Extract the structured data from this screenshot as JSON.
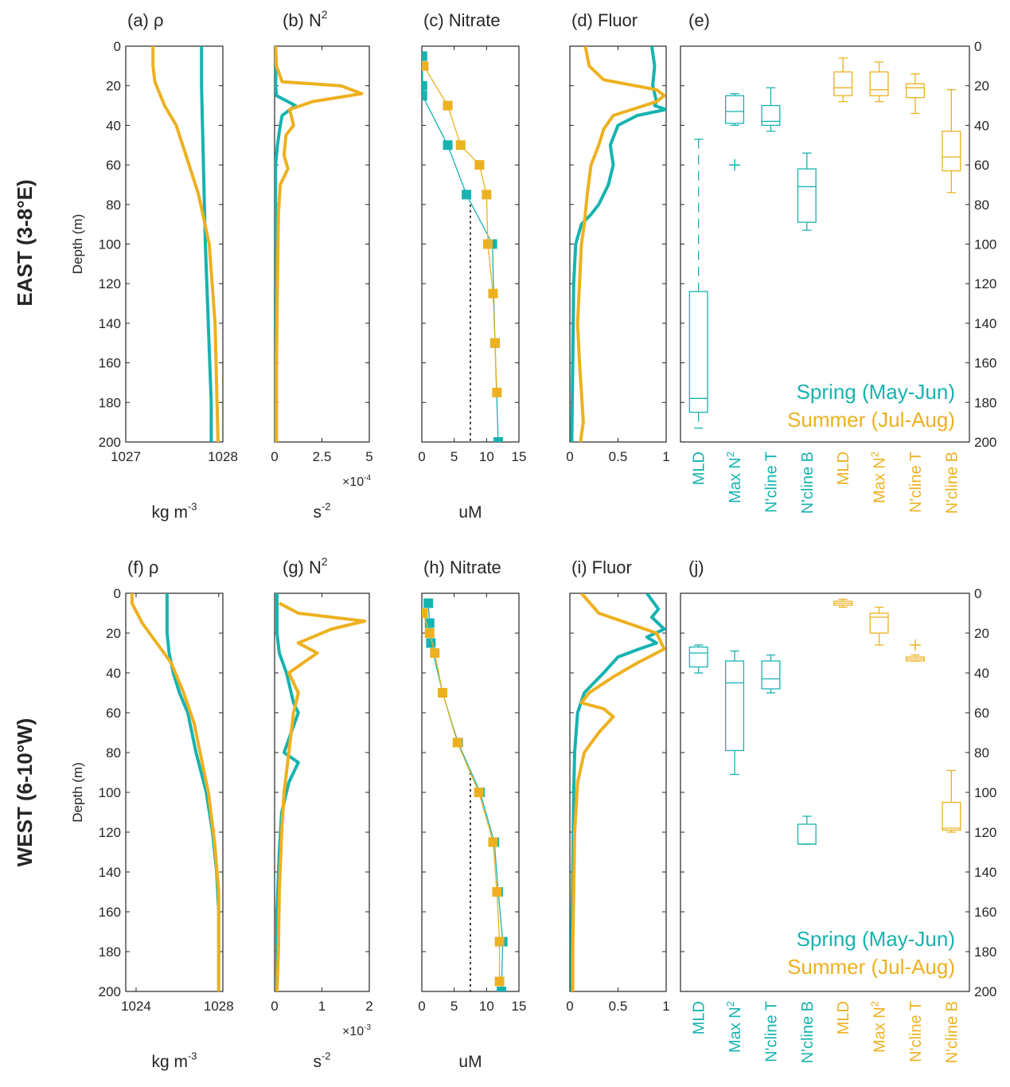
{
  "colors": {
    "spring": "#16b3b0",
    "summer": "#edb120",
    "axis": "#262626"
  },
  "rows": [
    {
      "row_label": "EAST (3-8°E)",
      "legend": {
        "spring": "Spring (May-Jun)",
        "summer": "Summer (Jul-Aug)"
      }
    },
    {
      "row_label": "WEST (6-10°W)",
      "legend": {
        "spring": "Spring (May-Jun)",
        "summer": "Summer (Jul-Aug)"
      }
    }
  ],
  "chart_data": [
    {
      "id": "a",
      "type": "line",
      "panel_label": "(a) ρ",
      "xlabel": "kg m-3",
      "ylabel": "Depth (m)",
      "xlim": [
        1027,
        1028
      ],
      "ylim": [
        0,
        200
      ],
      "y_reversed": true,
      "xticks": [
        1027,
        1028
      ],
      "xtick_labels": [
        "1027",
        "1028"
      ],
      "x_multiplier": "",
      "yticks": [
        0,
        20,
        40,
        60,
        80,
        100,
        120,
        140,
        160,
        180,
        200
      ],
      "series": [
        {
          "season": "spring",
          "x": [
            1027.78,
            1027.78,
            1027.79,
            1027.8,
            1027.82,
            1027.85,
            1027.88,
            1027.88
          ],
          "y": [
            0,
            20,
            40,
            60,
            100,
            140,
            180,
            200
          ]
        },
        {
          "season": "summer",
          "x": [
            1027.28,
            1027.28,
            1027.3,
            1027.4,
            1027.52,
            1027.62,
            1027.75,
            1027.86,
            1027.92,
            1027.95
          ],
          "y": [
            0,
            10,
            18,
            30,
            40,
            55,
            75,
            100,
            140,
            200
          ]
        }
      ]
    },
    {
      "id": "b",
      "type": "line",
      "panel_label": "(b) N²",
      "xlabel": "s-2",
      "xlim": [
        0,
        5
      ],
      "ylim": [
        0,
        200
      ],
      "y_reversed": true,
      "xticks": [
        0,
        2.5,
        5
      ],
      "xtick_labels": [
        "0",
        "2.5",
        "5"
      ],
      "x_multiplier": "×10-4",
      "yticks": [
        0,
        20,
        40,
        60,
        80,
        100,
        120,
        140,
        160,
        180,
        200
      ],
      "series": [
        {
          "season": "spring",
          "x": [
            0.05,
            0.08,
            0.05,
            0.1,
            1.1,
            0.4,
            0.3,
            0.15,
            0.05,
            0.05,
            0.05
          ],
          "y": [
            0,
            10,
            20,
            25,
            30,
            35,
            40,
            50,
            60,
            100,
            200
          ]
        },
        {
          "season": "summer",
          "x": [
            0.05,
            0.1,
            0.4,
            3.5,
            4.6,
            2.0,
            0.8,
            1.0,
            0.6,
            0.5,
            0.7,
            0.3,
            0.2,
            0.15,
            0.1,
            0.1
          ],
          "y": [
            0,
            10,
            18,
            20,
            24,
            28,
            32,
            40,
            45,
            55,
            62,
            70,
            85,
            120,
            160,
            200
          ]
        }
      ]
    },
    {
      "id": "c",
      "type": "line",
      "panel_label": "(c) Nitrate",
      "xlabel": "uM",
      "xlim": [
        0,
        15
      ],
      "ylim": [
        0,
        200
      ],
      "y_reversed": true,
      "xticks": [
        0,
        5,
        10,
        15
      ],
      "xtick_labels": [
        "0",
        "5",
        "10",
        "15"
      ],
      "x_multiplier": "",
      "yticks": [
        0,
        20,
        40,
        60,
        80,
        100,
        120,
        140,
        160,
        180,
        200
      ],
      "reference_line": {
        "x": 7.5,
        "y": [
          80,
          200
        ]
      },
      "series": [
        {
          "season": "spring",
          "markers": true,
          "x": [
            0.1,
            0.1,
            0.1,
            4.0,
            6.9,
            10.9,
            11.3,
            11.8
          ],
          "y": [
            5,
            20,
            25,
            50,
            75,
            100,
            150,
            200
          ]
        },
        {
          "season": "summer",
          "markers": true,
          "x": [
            0.3,
            4.0,
            6.0,
            8.9,
            10.0,
            10.2,
            11.0,
            11.3,
            11.6
          ],
          "y": [
            10,
            30,
            50,
            60,
            75,
            100,
            125,
            150,
            175
          ]
        }
      ]
    },
    {
      "id": "d",
      "type": "line",
      "panel_label": "(d) Fluor",
      "xlabel": "",
      "xlim": [
        0,
        1
      ],
      "ylim": [
        0,
        200
      ],
      "y_reversed": true,
      "xticks": [
        0,
        0.5,
        1
      ],
      "xtick_labels": [
        "0",
        "0.5",
        "1"
      ],
      "x_multiplier": "",
      "yticks": [
        0,
        20,
        40,
        60,
        80,
        100,
        120,
        140,
        160,
        180,
        200
      ],
      "series": [
        {
          "season": "spring",
          "x": [
            0.85,
            0.88,
            0.86,
            0.9,
            0.88,
            1.0,
            0.7,
            0.5,
            0.42,
            0.45,
            0.4,
            0.3,
            0.22,
            0.12,
            0.06,
            0.04,
            0.03,
            0.02
          ],
          "y": [
            0,
            10,
            20,
            28,
            30,
            32,
            35,
            40,
            50,
            60,
            70,
            80,
            85,
            90,
            100,
            120,
            160,
            200
          ]
        },
        {
          "season": "summer",
          "x": [
            0.16,
            0.2,
            0.35,
            0.9,
            0.98,
            0.9,
            0.45,
            0.35,
            0.3,
            0.22,
            0.18,
            0.15,
            0.12,
            0.1,
            0.08,
            0.1,
            0.12,
            0.14,
            0.11
          ],
          "y": [
            0,
            10,
            17,
            22,
            25,
            28,
            35,
            42,
            50,
            60,
            75,
            90,
            100,
            120,
            140,
            160,
            175,
            190,
            200
          ]
        }
      ]
    },
    {
      "id": "e",
      "type": "box",
      "panel_label": "(e)",
      "ylim": [
        0,
        200
      ],
      "y_reversed": true,
      "yticks": [
        0,
        20,
        40,
        60,
        80,
        100,
        120,
        140,
        160,
        180,
        200
      ],
      "categories": [
        "MLD",
        "Max N²",
        "N'cline T",
        "N'cline B",
        "MLD",
        "Max N²",
        "N'cline T",
        "N'cline B"
      ],
      "category_seasons": [
        "spring",
        "spring",
        "spring",
        "spring",
        "summer",
        "summer",
        "summer",
        "summer"
      ],
      "boxes": [
        {
          "min": 47,
          "q1": 124,
          "median": 178,
          "q3": 185,
          "max": 193,
          "outliers": [],
          "whisker_style": "dashed"
        },
        {
          "min": 24,
          "q1": 25,
          "median": 33,
          "q3": 39,
          "max": 40,
          "outliers": [
            60
          ]
        },
        {
          "min": 21,
          "q1": 30,
          "median": 38,
          "q3": 40,
          "max": 43,
          "outliers": []
        },
        {
          "min": 54,
          "q1": 62,
          "median": 71,
          "q3": 89,
          "max": 93,
          "outliers": []
        },
        {
          "min": 6,
          "q1": 13,
          "median": 21,
          "q3": 25,
          "max": 28,
          "outliers": []
        },
        {
          "min": 8,
          "q1": 13,
          "median": 22,
          "q3": 25,
          "max": 28,
          "outliers": []
        },
        {
          "min": 14,
          "q1": 19,
          "median": 21,
          "q3": 26,
          "max": 34,
          "outliers": []
        },
        {
          "min": 22,
          "q1": 43,
          "median": 56,
          "q3": 63,
          "max": 74,
          "outliers": []
        }
      ]
    },
    {
      "id": "f",
      "type": "line",
      "panel_label": "(f) ρ",
      "xlabel": "kg m-3",
      "ylabel": "Depth (m)",
      "xlim": [
        1023.5,
        1028.2
      ],
      "ylim": [
        0,
        200
      ],
      "y_reversed": true,
      "xticks": [
        1024,
        1028
      ],
      "xtick_labels": [
        "1024",
        "1028"
      ],
      "x_multiplier": "",
      "yticks": [
        0,
        20,
        40,
        60,
        80,
        100,
        120,
        140,
        160,
        180,
        200
      ],
      "series": [
        {
          "season": "spring",
          "x": [
            1025.5,
            1025.5,
            1025.6,
            1025.8,
            1026.1,
            1026.5,
            1026.9,
            1027.4,
            1027.7,
            1027.9,
            1028.0,
            1028.0
          ],
          "y": [
            0,
            20,
            30,
            40,
            50,
            60,
            80,
            100,
            120,
            140,
            160,
            200
          ]
        },
        {
          "season": "summer",
          "x": [
            1023.8,
            1023.8,
            1024.3,
            1025.0,
            1025.7,
            1026.3,
            1026.8,
            1027.2,
            1027.5,
            1027.8,
            1028.0,
            1028.0
          ],
          "y": [
            0,
            5,
            15,
            25,
            35,
            50,
            65,
            85,
            100,
            125,
            150,
            200
          ]
        }
      ]
    },
    {
      "id": "g",
      "type": "line",
      "panel_label": "(g) N²",
      "xlabel": "s-2",
      "xlim": [
        0,
        2
      ],
      "ylim": [
        0,
        200
      ],
      "y_reversed": true,
      "xticks": [
        0,
        1,
        2
      ],
      "xtick_labels": [
        "0",
        "1",
        "2"
      ],
      "x_multiplier": "×10-3",
      "yticks": [
        0,
        20,
        40,
        60,
        80,
        100,
        120,
        140,
        160,
        180,
        200
      ],
      "series": [
        {
          "season": "spring",
          "x": [
            0.05,
            0.05,
            0.1,
            0.25,
            0.3,
            0.4,
            0.5,
            0.35,
            0.2,
            0.5,
            0.3,
            0.15,
            0.1,
            0.05,
            0.05
          ],
          "y": [
            0,
            20,
            30,
            40,
            45,
            55,
            60,
            70,
            80,
            85,
            95,
            110,
            130,
            160,
            200
          ]
        },
        {
          "season": "summer",
          "x": [
            0.1,
            0.5,
            1.9,
            1.2,
            0.5,
            0.9,
            0.3,
            0.5,
            0.4,
            0.3,
            0.2,
            0.15,
            0.1,
            0.08,
            0.05
          ],
          "y": [
            5,
            10,
            14,
            18,
            25,
            30,
            40,
            50,
            60,
            80,
            100,
            120,
            150,
            180,
            200
          ]
        }
      ]
    },
    {
      "id": "h",
      "type": "line",
      "panel_label": "(h) Nitrate",
      "xlabel": "uM",
      "xlim": [
        0,
        15
      ],
      "ylim": [
        0,
        200
      ],
      "y_reversed": true,
      "xticks": [
        0,
        5,
        10,
        15
      ],
      "xtick_labels": [
        "0",
        "5",
        "10",
        "15"
      ],
      "x_multiplier": "",
      "yticks": [
        0,
        20,
        40,
        60,
        80,
        100,
        120,
        140,
        160,
        180,
        200
      ],
      "reference_line": {
        "x": 7.5,
        "y": [
          90,
          200
        ]
      },
      "series": [
        {
          "season": "spring",
          "markers": true,
          "x": [
            1.0,
            1.2,
            1.4,
            3.2,
            5.6,
            9.0,
            11.2,
            11.8,
            12.5,
            12.3
          ],
          "y": [
            5,
            15,
            25,
            50,
            75,
            100,
            125,
            150,
            175,
            200
          ]
        },
        {
          "season": "summer",
          "markers": true,
          "x": [
            0.2,
            1.2,
            2.0,
            3.2,
            5.5,
            8.8,
            11.0,
            11.6,
            12.0,
            12.0
          ],
          "y": [
            10,
            20,
            30,
            50,
            75,
            100,
            125,
            150,
            175,
            195
          ]
        }
      ]
    },
    {
      "id": "i",
      "type": "line",
      "panel_label": "(i) Fluor",
      "xlabel": "",
      "xlim": [
        0,
        1
      ],
      "ylim": [
        0,
        200
      ],
      "y_reversed": true,
      "xticks": [
        0,
        0.5,
        1
      ],
      "xtick_labels": [
        "0",
        "0.5",
        "1"
      ],
      "x_multiplier": "",
      "yticks": [
        0,
        20,
        40,
        60,
        80,
        100,
        120,
        140,
        160,
        180,
        200
      ],
      "series": [
        {
          "season": "spring",
          "x": [
            0.8,
            0.92,
            0.85,
            0.98,
            0.8,
            0.9,
            0.72,
            0.5,
            0.35,
            0.15,
            0.08,
            0.05,
            0.04,
            0.03,
            0.02,
            0.02
          ],
          "y": [
            0,
            8,
            12,
            18,
            22,
            25,
            28,
            32,
            40,
            50,
            60,
            80,
            100,
            140,
            170,
            200
          ]
        },
        {
          "season": "summer",
          "x": [
            0.12,
            0.3,
            0.6,
            0.9,
            0.98,
            0.7,
            0.45,
            0.2,
            0.12,
            0.35,
            0.45,
            0.3,
            0.15,
            0.08,
            0.05,
            0.04,
            0.03,
            0.03
          ],
          "y": [
            0,
            10,
            15,
            20,
            28,
            35,
            42,
            50,
            55,
            58,
            62,
            70,
            80,
            95,
            120,
            150,
            180,
            200
          ]
        }
      ]
    },
    {
      "id": "j",
      "type": "box",
      "panel_label": "(j)",
      "ylim": [
        0,
        200
      ],
      "y_reversed": true,
      "yticks": [
        0,
        20,
        40,
        60,
        80,
        100,
        120,
        140,
        160,
        180,
        200
      ],
      "categories": [
        "MLD",
        "Max N²",
        "N'cline T",
        "N'cline B",
        "MLD",
        "Max N²",
        "N'cline T",
        "N'cline B"
      ],
      "category_seasons": [
        "spring",
        "spring",
        "spring",
        "spring",
        "summer",
        "summer",
        "summer",
        "summer"
      ],
      "boxes": [
        {
          "min": 26,
          "q1": 27,
          "median": 30,
          "q3": 37,
          "max": 40,
          "outliers": []
        },
        {
          "min": 29,
          "q1": 34,
          "median": 45,
          "q3": 79,
          "max": 91,
          "outliers": []
        },
        {
          "min": 31,
          "q1": 34,
          "median": 43,
          "q3": 48,
          "max": 50,
          "outliers": []
        },
        {
          "min": 112,
          "q1": 116,
          "median": 126,
          "q3": 126,
          "max": 126,
          "outliers": []
        },
        {
          "min": 3,
          "q1": 4,
          "median": 5,
          "q3": 6,
          "max": 7,
          "outliers": []
        },
        {
          "min": 7,
          "q1": 10,
          "median": 12,
          "q3": 20,
          "max": 26,
          "outliers": []
        },
        {
          "min": 31,
          "q1": 32,
          "median": 33,
          "q3": 34,
          "max": 34,
          "outliers": [
            26
          ]
        },
        {
          "min": 89,
          "q1": 105,
          "median": 118,
          "q3": 119,
          "max": 120,
          "outliers": []
        }
      ]
    }
  ]
}
